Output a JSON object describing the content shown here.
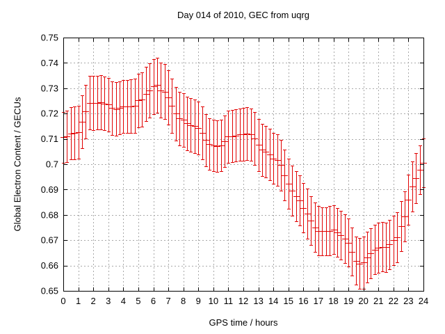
{
  "chart_data": {
    "type": "scatter",
    "style": "yerrorbars",
    "title": "Day 014 of 2010, GEC from uqrg",
    "xlabel": "GPS time / hours",
    "ylabel": "Global Electron Content / GECUs",
    "xlim": [
      0,
      24
    ],
    "ylim": [
      0.65,
      0.75
    ],
    "grid": true,
    "legend": "none",
    "series_color": "#e10000",
    "grid_color": "#a8a8a8",
    "frame_color": "#000000",
    "x_ticks": [
      0,
      1,
      2,
      3,
      4,
      5,
      6,
      7,
      8,
      9,
      10,
      11,
      12,
      13,
      14,
      15,
      16,
      17,
      18,
      19,
      20,
      21,
      22,
      23,
      24
    ],
    "x_tick_labels": [
      "0",
      "1",
      "2",
      "3",
      "4",
      "5",
      "6",
      "7",
      "8",
      "9",
      "10",
      "11",
      "12",
      "13",
      "14",
      "15",
      "16",
      "17",
      "18",
      "19",
      "20",
      "21",
      "22",
      "23",
      "24"
    ],
    "y_ticks": [
      0.65,
      0.66,
      0.67,
      0.68,
      0.69,
      0.7,
      0.71,
      0.72,
      0.73,
      0.74,
      0.75
    ],
    "y_tick_labels": [
      "0.65",
      "0.66",
      "0.67",
      "0.68",
      "0.69",
      "0.7",
      "0.71",
      "0.72",
      "0.73",
      "0.74",
      "0.75"
    ],
    "x": [
      0,
      0.25,
      0.5,
      0.75,
      1,
      1.25,
      1.5,
      1.75,
      2,
      2.25,
      2.5,
      2.75,
      3,
      3.25,
      3.5,
      3.75,
      4,
      4.25,
      4.5,
      4.75,
      5,
      5.25,
      5.5,
      5.75,
      6,
      6.25,
      6.5,
      6.75,
      7,
      7.25,
      7.5,
      7.75,
      8,
      8.25,
      8.5,
      8.75,
      9,
      9.25,
      9.5,
      9.75,
      10,
      10.25,
      10.5,
      10.75,
      11,
      11.25,
      11.5,
      11.75,
      12,
      12.25,
      12.5,
      12.75,
      13,
      13.25,
      13.5,
      13.75,
      14,
      14.25,
      14.5,
      14.75,
      15,
      15.25,
      15.5,
      15.75,
      16,
      16.25,
      16.5,
      16.75,
      17,
      17.25,
      17.5,
      17.75,
      18,
      18.25,
      18.5,
      18.75,
      19,
      19.25,
      19.5,
      19.75,
      20,
      20.25,
      20.5,
      20.75,
      21,
      21.25,
      21.5,
      21.75,
      22,
      22.25,
      22.5,
      22.75,
      23,
      23.25,
      23.5,
      23.75,
      24
    ],
    "y": [
      0.7106,
      0.711,
      0.7121,
      0.7123,
      0.7127,
      0.7168,
      0.7208,
      0.7242,
      0.7241,
      0.7243,
      0.7245,
      0.724,
      0.7235,
      0.7222,
      0.7218,
      0.7222,
      0.7228,
      0.7228,
      0.7229,
      0.7231,
      0.7252,
      0.7256,
      0.7277,
      0.7291,
      0.7307,
      0.7312,
      0.7292,
      0.7287,
      0.7264,
      0.723,
      0.72,
      0.718,
      0.7175,
      0.7161,
      0.7155,
      0.715,
      0.7143,
      0.7123,
      0.7096,
      0.7079,
      0.7075,
      0.7071,
      0.7075,
      0.7091,
      0.7109,
      0.7111,
      0.7114,
      0.7117,
      0.7119,
      0.7121,
      0.7117,
      0.7102,
      0.7076,
      0.7057,
      0.705,
      0.7039,
      0.7023,
      0.7017,
      0.6996,
      0.6957,
      0.6923,
      0.6896,
      0.6873,
      0.6858,
      0.6828,
      0.6805,
      0.6778,
      0.6751,
      0.6737,
      0.6735,
      0.6735,
      0.6737,
      0.6742,
      0.673,
      0.6719,
      0.6705,
      0.669,
      0.6655,
      0.6619,
      0.6608,
      0.6612,
      0.6633,
      0.6648,
      0.6663,
      0.667,
      0.6674,
      0.6672,
      0.6683,
      0.67,
      0.6712,
      0.6755,
      0.6795,
      0.686,
      0.6912,
      0.6945,
      0.6978,
      0.7005
    ],
    "y_err": [
      0.01,
      0.0102,
      0.0103,
      0.0104,
      0.0105,
      0.0105,
      0.0106,
      0.0106,
      0.0107,
      0.0107,
      0.0107,
      0.0106,
      0.0106,
      0.0106,
      0.0105,
      0.0105,
      0.0105,
      0.0105,
      0.0105,
      0.0106,
      0.0106,
      0.0107,
      0.0107,
      0.0108,
      0.0108,
      0.0109,
      0.0108,
      0.0108,
      0.0107,
      0.0107,
      0.0106,
      0.0106,
      0.0106,
      0.0105,
      0.0105,
      0.0105,
      0.0104,
      0.0104,
      0.0103,
      0.0102,
      0.0102,
      0.0101,
      0.0102,
      0.0102,
      0.0103,
      0.0103,
      0.0104,
      0.0104,
      0.0104,
      0.0105,
      0.0104,
      0.0104,
      0.0103,
      0.0103,
      0.0102,
      0.0102,
      0.0101,
      0.0101,
      0.0101,
      0.01,
      0.01,
      0.0099,
      0.0099,
      0.0099,
      0.0098,
      0.0098,
      0.0097,
      0.0097,
      0.0097,
      0.0096,
      0.0096,
      0.0097,
      0.0097,
      0.0096,
      0.0096,
      0.0096,
      0.0095,
      0.0095,
      0.0095,
      0.01,
      0.0103,
      0.01,
      0.0099,
      0.0098,
      0.0098,
      0.0098,
      0.0098,
      0.0098,
      0.0098,
      0.0099,
      0.0099,
      0.0099,
      0.0099,
      0.0098,
      0.0098,
      0.0097,
      0.0097
    ]
  }
}
